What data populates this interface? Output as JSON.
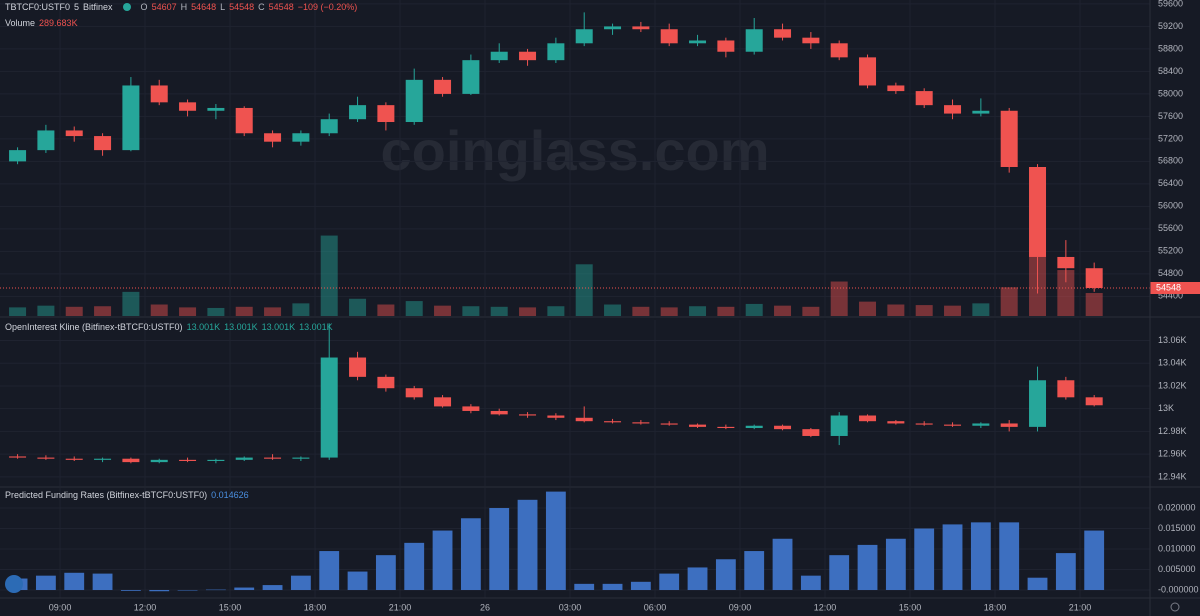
{
  "watermark": "coinglass.com",
  "time": {
    "x": [
      -1.5,
      -0.5,
      0.5,
      1.5,
      2.5,
      3.5,
      4.5,
      5.5,
      6.5,
      7.5,
      8.5,
      9.5,
      10.5,
      11.5,
      12.5,
      13.5,
      14.5,
      15.5,
      16.5,
      17.5,
      18.5,
      19.5,
      20.5,
      21.5,
      22.5,
      23.5,
      24.5,
      25.5,
      26.5,
      27.5,
      28.5,
      29.5,
      30.5,
      31.5,
      32.5,
      33.5,
      34.5,
      35.5,
      36.5
    ],
    "xlim": [
      -2.12,
      38.47
    ],
    "xticks": [
      {
        "value": 0,
        "label": "09:00"
      },
      {
        "value": 3,
        "label": "12:00"
      },
      {
        "value": 6,
        "label": "15:00"
      },
      {
        "value": 9,
        "label": "18:00"
      },
      {
        "value": 12,
        "label": "21:00"
      },
      {
        "value": 15,
        "label": "26"
      },
      {
        "value": 18,
        "label": "03:00"
      },
      {
        "value": 21,
        "label": "06:00"
      },
      {
        "value": 24,
        "label": "09:00"
      },
      {
        "value": 27,
        "label": "12:00"
      },
      {
        "value": 30,
        "label": "15:00"
      },
      {
        "value": 33,
        "label": "18:00"
      },
      {
        "value": 36,
        "label": "21:00"
      }
    ]
  },
  "chart_data": [
    {
      "type": "candlestick",
      "symbol": "TBTCF0:USTF0",
      "interval": "5",
      "exchange": "Bitfinex",
      "legend": [
        {
          "key": "O",
          "value": 54607
        },
        {
          "key": "H",
          "value": 54648
        },
        {
          "key": "L",
          "value": 54548
        },
        {
          "key": "C",
          "value": 54548
        }
      ],
      "change": "−109 (−0.20%)",
      "volume_label": "Volume",
      "volume_last": "289.683K",
      "up_color": "#26a69a",
      "down_color": "#ef5350",
      "open": [
        56800,
        57000,
        57350,
        57250,
        57000,
        58150,
        57850,
        57700,
        57750,
        57300,
        57150,
        57300,
        57550,
        57800,
        57500,
        58250,
        58000,
        58600,
        58750,
        58600,
        58900,
        59150,
        59200,
        59150,
        58900,
        58950,
        58750,
        59150,
        59000,
        58900,
        58650,
        58150,
        58050,
        57800,
        57650,
        57700,
        56700,
        55100,
        54900
      ],
      "high": [
        57050,
        57450,
        57420,
        57300,
        58300,
        58250,
        57900,
        57820,
        57780,
        57350,
        57350,
        57650,
        57950,
        57850,
        58450,
        58300,
        58700,
        58900,
        58800,
        59000,
        59450,
        59250,
        59280,
        59250,
        59050,
        59000,
        59350,
        59250,
        59100,
        58950,
        58700,
        58200,
        58100,
        57900,
        57920,
        57750,
        56750,
        55400,
        55000
      ],
      "low": [
        56750,
        56950,
        57150,
        56900,
        56980,
        57800,
        57600,
        57550,
        57250,
        57050,
        57080,
        57250,
        57500,
        57350,
        57450,
        57950,
        57980,
        58550,
        58500,
        58550,
        58850,
        59050,
        59100,
        58850,
        58850,
        58650,
        58700,
        58950,
        58800,
        58600,
        58100,
        58000,
        57750,
        57550,
        57600,
        56600,
        54450,
        54650,
        54480
      ],
      "close": [
        57000,
        57350,
        57250,
        57000,
        58150,
        57850,
        57700,
        57750,
        57300,
        57150,
        57300,
        57550,
        57800,
        57500,
        58250,
        58000,
        58600,
        58750,
        58600,
        58900,
        59150,
        59200,
        59150,
        58900,
        58950,
        58750,
        59150,
        59000,
        58900,
        58650,
        58150,
        58050,
        57800,
        57650,
        57700,
        56700,
        55100,
        54900,
        54548
      ],
      "volume": [
        150,
        180,
        160,
        170,
        420,
        200,
        150,
        140,
        160,
        150,
        220,
        1400,
        300,
        200,
        260,
        180,
        170,
        160,
        150,
        170,
        900,
        200,
        160,
        150,
        170,
        160,
        210,
        180,
        160,
        600,
        250,
        200,
        190,
        180,
        220,
        500,
        1200,
        800,
        400
      ],
      "volume_lim": [
        0,
        5500
      ],
      "last_price": 54548,
      "ylim": [
        54050,
        59670
      ],
      "yticks": [
        59600,
        59200,
        58800,
        58400,
        58000,
        57600,
        57200,
        56800,
        56400,
        56000,
        55600,
        55200,
        54800,
        54400
      ]
    },
    {
      "type": "candlestick",
      "title": "OpenInterest Kline (Bitfinex-tBTCF0:USTF0)",
      "legend_values": [
        "13.001K",
        "13.001K",
        "13.001K",
        "13.001K"
      ],
      "up_color": "#26a69a",
      "down_color": "#ef5350",
      "open": [
        12958,
        12957,
        12956,
        12955,
        12956,
        12953,
        12955,
        12954,
        12955,
        12957,
        12956,
        12957,
        13045,
        13028,
        13018,
        13010,
        13002,
        12998,
        12995,
        12994,
        12992,
        12989,
        12988,
        12987,
        12986,
        12984,
        12983,
        12985,
        12982,
        12976,
        12994,
        12989,
        12987,
        12986,
        12985,
        12987,
        12984,
        13025,
        13010
      ],
      "high": [
        12960,
        12959,
        12958,
        12957,
        12957,
        12956,
        12957,
        12956,
        12958,
        12960,
        12958,
        13075,
        13050,
        13030,
        13020,
        13012,
        13004,
        13000,
        12997,
        12996,
        13002,
        12991,
        12990,
        12989,
        12987,
        12986,
        12986,
        12986,
        12983,
        12997,
        12995,
        12990,
        12989,
        12988,
        12988,
        12990,
        13037,
        13028,
        13012
      ],
      "low": [
        12956,
        12955,
        12954,
        12953,
        12952,
        12952,
        12953,
        12952,
        12954,
        12955,
        12954,
        12955,
        13025,
        13015,
        13008,
        13001,
        12996,
        12994,
        12992,
        12990,
        12988,
        12987,
        12986,
        12985,
        12983,
        12982,
        12982,
        12981,
        12975,
        12968,
        12988,
        12986,
        12985,
        12984,
        12983,
        12980,
        12980,
        13008,
        13002
      ],
      "close": [
        12957,
        12956,
        12955,
        12956,
        12953,
        12955,
        12954,
        12955,
        12957,
        12956,
        12957,
        13045,
        13028,
        13018,
        13010,
        13002,
        12998,
        12995,
        12994,
        12992,
        12989,
        12988,
        12987,
        12986,
        12984,
        12983,
        12985,
        12982,
        12976,
        12994,
        12989,
        12987,
        12986,
        12985,
        12987,
        12984,
        13025,
        13010,
        13003
      ],
      "ylim": [
        12932,
        13078
      ],
      "yticks": [
        {
          "value": 13060,
          "label": "13.06K"
        },
        {
          "value": 13040,
          "label": "13.04K"
        },
        {
          "value": 13020,
          "label": "13.02K"
        },
        {
          "value": 13000,
          "label": "13K"
        },
        {
          "value": 12980,
          "label": "12.98K"
        },
        {
          "value": 12960,
          "label": "12.96K"
        },
        {
          "value": 12940,
          "label": "12.94K"
        }
      ]
    },
    {
      "type": "bar",
      "title": "Predicted Funding Rates (Bitfinex-tBTCF0:USTF0)",
      "last_value": 0.014626,
      "color": "#3d6fc0",
      "values": [
        0.0028,
        0.0035,
        0.0042,
        0.004,
        -0.0002,
        -0.0003,
        -0.0001,
        0.0001,
        0.0006,
        0.0012,
        0.0035,
        0.0095,
        0.0045,
        0.0085,
        0.0115,
        0.0145,
        0.0175,
        0.02,
        0.022,
        0.024,
        0.0015,
        0.0015,
        0.002,
        0.004,
        0.0055,
        0.0075,
        0.0095,
        0.0125,
        0.0035,
        0.0085,
        0.011,
        0.0125,
        0.015,
        0.016,
        0.0165,
        0.0165,
        0.003,
        0.009,
        0.0145
      ],
      "ylim": [
        -0.00195,
        0.02488
      ],
      "yticks": [
        {
          "value": 0.02,
          "label": "0.020000"
        },
        {
          "value": 0.015,
          "label": "0.015000"
        },
        {
          "value": 0.01,
          "label": "0.010000"
        },
        {
          "value": 0.005,
          "label": "0.005000"
        },
        {
          "value": 0,
          "label": "-0.000000"
        }
      ]
    }
  ]
}
